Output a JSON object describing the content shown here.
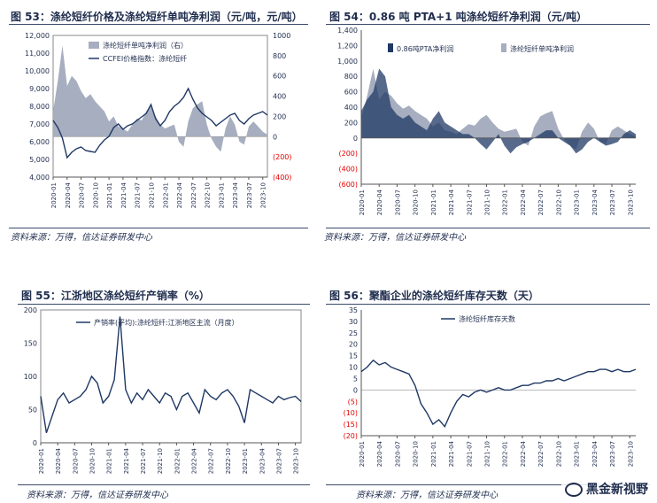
{
  "figures": {
    "f53": {
      "title": "图 53：涤纶短纤价格及涤纶短纤单吨净利润（元/吨，元/吨）",
      "source": "资料来源：万得，信达证券研发中心"
    },
    "f54": {
      "title": "图 54：0.86 吨 PTA+1 吨涤纶短纤净利润（元/吨）",
      "source": "资料来源：万得，信达证券研发中心"
    },
    "f55": {
      "title": "图 55：江浙地区涤纶短纤产销率（%）",
      "source": "资料来源：万得，信达证券研发中心"
    },
    "f56": {
      "title": "图 56：聚酯企业的涤纶短纤库存天数（天）",
      "source": "资料来源：万得，信达证券研发中心"
    }
  },
  "watermark": {
    "text": "黑金新视野"
  },
  "colors": {
    "navy": "#1f3864",
    "gray_area": "#a6aebf",
    "negative_axis": "#e60000",
    "text": "#1f2d4e"
  },
  "x_ticks": [
    "2020-01",
    "2020-04",
    "2020-07",
    "2020-10",
    "2021-01",
    "2021-04",
    "2021-07",
    "2021-10",
    "2022-01",
    "2022-04",
    "2022-07",
    "2022-10",
    "2023-01",
    "2023-04",
    "2023-07",
    "2023-10"
  ],
  "chart_data": [
    {
      "type": "line",
      "id": "f53",
      "title": "涤纶短纤价格及涤纶短纤单吨净利润（元/吨，元/吨）",
      "series": [
        {
          "name": "涤纶短纤单吨净利润（右）",
          "kind": "area",
          "axis": "right",
          "x": [
            "2020-01",
            "2020-02",
            "2020-03",
            "2020-04",
            "2020-05",
            "2020-06",
            "2020-07",
            "2020-08",
            "2020-09",
            "2020-10",
            "2020-11",
            "2020-12",
            "2021-01",
            "2021-02",
            "2021-03",
            "2021-04",
            "2021-05",
            "2021-06",
            "2021-07",
            "2021-08",
            "2021-09",
            "2021-10",
            "2021-11",
            "2021-12",
            "2022-01",
            "2022-02",
            "2022-03",
            "2022-04",
            "2022-05",
            "2022-06",
            "2022-07",
            "2022-08",
            "2022-09",
            "2022-10",
            "2022-11",
            "2022-12",
            "2023-01",
            "2023-02",
            "2023-03",
            "2023-04",
            "2023-05",
            "2023-06",
            "2023-07",
            "2023-08",
            "2023-09",
            "2023-10",
            "2023-11"
          ],
          "values": [
            250,
            550,
            900,
            500,
            600,
            550,
            450,
            380,
            420,
            350,
            300,
            250,
            150,
            200,
            100,
            80,
            50,
            120,
            180,
            160,
            250,
            300,
            200,
            120,
            80,
            100,
            120,
            -50,
            -100,
            150,
            280,
            320,
            350,
            120,
            -20,
            -100,
            -150,
            80,
            200,
            120,
            -50,
            -80,
            100,
            150,
            100,
            50,
            20
          ]
        },
        {
          "name": "CCFEI价格指数：涤纶短纤",
          "kind": "line",
          "axis": "left",
          "x": [
            "2020-01",
            "2020-02",
            "2020-03",
            "2020-04",
            "2020-05",
            "2020-06",
            "2020-07",
            "2020-08",
            "2020-09",
            "2020-10",
            "2020-11",
            "2020-12",
            "2021-01",
            "2021-02",
            "2021-03",
            "2021-04",
            "2021-05",
            "2021-06",
            "2021-07",
            "2021-08",
            "2021-09",
            "2021-10",
            "2021-11",
            "2021-12",
            "2022-01",
            "2022-02",
            "2022-03",
            "2022-04",
            "2022-05",
            "2022-06",
            "2022-07",
            "2022-08",
            "2022-09",
            "2022-10",
            "2022-11",
            "2022-12",
            "2023-01",
            "2023-02",
            "2023-03",
            "2023-04",
            "2023-05",
            "2023-06",
            "2023-07",
            "2023-08",
            "2023-09",
            "2023-10",
            "2023-11"
          ],
          "values": [
            7200,
            6800,
            6200,
            5100,
            5400,
            5600,
            5700,
            5500,
            5450,
            5400,
            5800,
            6100,
            6300,
            6800,
            7000,
            6700,
            6900,
            7000,
            7200,
            7400,
            7600,
            8100,
            7300,
            6900,
            7200,
            7700,
            8000,
            8200,
            8500,
            9000,
            8400,
            7900,
            7600,
            7400,
            7200,
            6900,
            7100,
            7300,
            7500,
            7600,
            7200,
            7000,
            7300,
            7500,
            7600,
            7700,
            7500
          ]
        }
      ],
      "left_axis": {
        "min": 4000,
        "max": 12000,
        "ticks": [
          "4,000",
          "5,000",
          "6,000",
          "7,000",
          "8,000",
          "9,000",
          "10,000",
          "11,000",
          "12,000"
        ]
      },
      "right_axis": {
        "min": -400,
        "max": 1000,
        "ticks": [
          "(400)",
          "(200)",
          "0",
          "200",
          "400",
          "600",
          "800",
          "1000"
        ]
      },
      "legend": "top-left",
      "grid": false
    },
    {
      "type": "area",
      "id": "f54",
      "title": "0.86 吨 PTA+1 吨涤纶短纤净利润（元/吨）",
      "series": [
        {
          "name": "0.86吨PTA净利润",
          "color": "#1f3864",
          "x": [
            "2020-01",
            "2020-02",
            "2020-03",
            "2020-04",
            "2020-05",
            "2020-06",
            "2020-07",
            "2020-08",
            "2020-09",
            "2020-10",
            "2020-11",
            "2020-12",
            "2021-01",
            "2021-02",
            "2021-03",
            "2021-04",
            "2021-05",
            "2021-06",
            "2021-07",
            "2021-08",
            "2021-09",
            "2021-10",
            "2021-11",
            "2021-12",
            "2022-01",
            "2022-02",
            "2022-03",
            "2022-04",
            "2022-05",
            "2022-06",
            "2022-07",
            "2022-08",
            "2022-09",
            "2022-10",
            "2022-11",
            "2022-12",
            "2023-01",
            "2023-02",
            "2023-03",
            "2023-04",
            "2023-05",
            "2023-06",
            "2023-07",
            "2023-08",
            "2023-09",
            "2023-10",
            "2023-11"
          ],
          "values": [
            350,
            500,
            600,
            900,
            800,
            400,
            300,
            250,
            300,
            200,
            150,
            100,
            250,
            350,
            200,
            150,
            100,
            50,
            50,
            0,
            -80,
            -150,
            -50,
            50,
            -100,
            -200,
            -120,
            -80,
            -50,
            0,
            50,
            100,
            100,
            0,
            -50,
            -100,
            -200,
            -150,
            -50,
            0,
            -50,
            -100,
            -80,
            -50,
            50,
            100,
            50
          ]
        },
        {
          "name": "涤纶短纤单吨净利润",
          "color": "#a6aebf",
          "x": [
            "2020-01",
            "2020-02",
            "2020-03",
            "2020-04",
            "2020-05",
            "2020-06",
            "2020-07",
            "2020-08",
            "2020-09",
            "2020-10",
            "2020-11",
            "2020-12",
            "2021-01",
            "2021-02",
            "2021-03",
            "2021-04",
            "2021-05",
            "2021-06",
            "2021-07",
            "2021-08",
            "2021-09",
            "2021-10",
            "2021-11",
            "2021-12",
            "2022-01",
            "2022-02",
            "2022-03",
            "2022-04",
            "2022-05",
            "2022-06",
            "2022-07",
            "2022-08",
            "2022-09",
            "2022-10",
            "2022-11",
            "2022-12",
            "2023-01",
            "2023-02",
            "2023-03",
            "2023-04",
            "2023-05",
            "2023-06",
            "2023-07",
            "2023-08",
            "2023-09",
            "2023-10",
            "2023-11"
          ],
          "values": [
            250,
            550,
            900,
            500,
            600,
            550,
            450,
            380,
            420,
            350,
            300,
            250,
            150,
            200,
            100,
            80,
            50,
            120,
            180,
            160,
            250,
            300,
            200,
            120,
            80,
            100,
            120,
            -50,
            -100,
            150,
            280,
            320,
            350,
            120,
            -20,
            -100,
            -150,
            80,
            200,
            120,
            -50,
            -80,
            100,
            150,
            100,
            50,
            20
          ]
        }
      ],
      "y_axis": {
        "min": -600,
        "max": 1400,
        "ticks": [
          "(600)",
          "(400)",
          "(200)",
          "0",
          "200",
          "400",
          "600",
          "800",
          "1,000",
          "1,200",
          "1,400"
        ]
      },
      "legend": "top",
      "grid": false
    },
    {
      "type": "line",
      "id": "f55",
      "title": "江浙地区涤纶短纤产销率（%）",
      "series": [
        {
          "name": "产销率(平均):涤纶短纤:江浙地区主流（月度）",
          "x": [
            "2020-01",
            "2020-02",
            "2020-03",
            "2020-04",
            "2020-05",
            "2020-06",
            "2020-07",
            "2020-08",
            "2020-09",
            "2020-10",
            "2020-11",
            "2020-12",
            "2021-01",
            "2021-02",
            "2021-03",
            "2021-04",
            "2021-05",
            "2021-06",
            "2021-07",
            "2021-08",
            "2021-09",
            "2021-10",
            "2021-11",
            "2021-12",
            "2022-01",
            "2022-02",
            "2022-03",
            "2022-04",
            "2022-05",
            "2022-06",
            "2022-07",
            "2022-08",
            "2022-09",
            "2022-10",
            "2022-11",
            "2022-12",
            "2023-01",
            "2023-02",
            "2023-03",
            "2023-04",
            "2023-05",
            "2023-06",
            "2023-07",
            "2023-08",
            "2023-09",
            "2023-10",
            "2023-11"
          ],
          "values": [
            70,
            15,
            40,
            65,
            75,
            60,
            65,
            70,
            80,
            100,
            90,
            60,
            70,
            95,
            190,
            80,
            60,
            75,
            65,
            80,
            70,
            60,
            75,
            70,
            50,
            70,
            75,
            60,
            45,
            80,
            70,
            65,
            75,
            80,
            70,
            55,
            30,
            80,
            75,
            70,
            65,
            60,
            70,
            65,
            68,
            70,
            62
          ]
        }
      ],
      "y_axis": {
        "min": 0,
        "max": 200,
        "ticks": [
          "0",
          "50",
          "100",
          "150",
          "200"
        ]
      },
      "legend": "top",
      "grid": false
    },
    {
      "type": "line",
      "id": "f56",
      "title": "聚酯企业的涤纶短纤库存天数（天）",
      "series": [
        {
          "name": "涤纶短纤库存天数",
          "x": [
            "2020-01",
            "2020-02",
            "2020-03",
            "2020-04",
            "2020-05",
            "2020-06",
            "2020-07",
            "2020-08",
            "2020-09",
            "2020-10",
            "2020-11",
            "2020-12",
            "2021-01",
            "2021-02",
            "2021-03",
            "2021-04",
            "2021-05",
            "2021-06",
            "2021-07",
            "2021-08",
            "2021-09",
            "2021-10",
            "2021-11",
            "2021-12",
            "2022-01",
            "2022-02",
            "2022-03",
            "2022-04",
            "2022-05",
            "2022-06",
            "2022-07",
            "2022-08",
            "2022-09",
            "2022-10",
            "2022-11",
            "2022-12",
            "2023-01",
            "2023-02",
            "2023-03",
            "2023-04",
            "2023-05",
            "2023-06",
            "2023-07",
            "2023-08",
            "2023-09",
            "2023-10",
            "2023-11"
          ],
          "values": [
            8,
            10,
            13,
            11,
            12,
            10,
            9,
            8,
            7,
            2,
            -6,
            -10,
            -15,
            -13,
            -16,
            -10,
            -5,
            -2,
            -3,
            -1,
            0,
            -1,
            0,
            1,
            0,
            0,
            1,
            2,
            2,
            3,
            3,
            4,
            4,
            5,
            4,
            5,
            6,
            7,
            8,
            8,
            9,
            9,
            8,
            9,
            8,
            8,
            9
          ]
        }
      ],
      "y_axis": {
        "min": -20,
        "max": 35,
        "ticks": [
          "(20)",
          "(15)",
          "(10)",
          "(5)",
          "0",
          "5",
          "10",
          "15",
          "20",
          "25",
          "30",
          "35"
        ]
      },
      "legend": "top",
      "grid": false
    }
  ]
}
